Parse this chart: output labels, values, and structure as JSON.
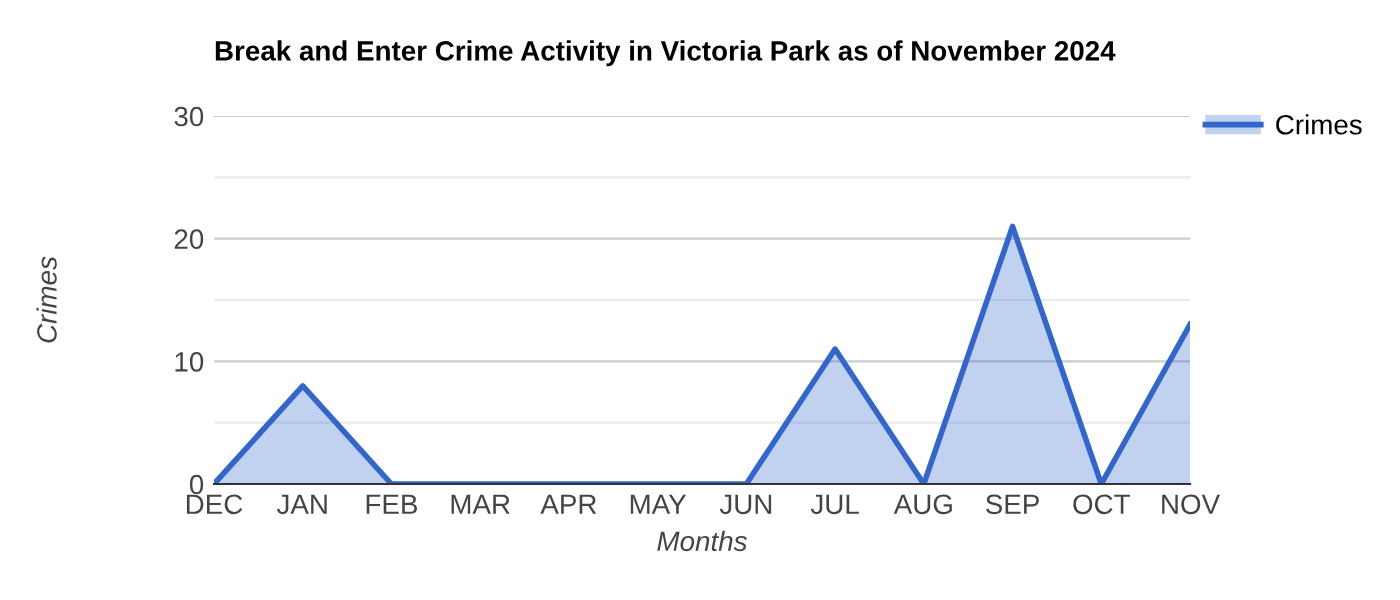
{
  "chart_data": {
    "type": "area",
    "title": "Break and Enter Crime Activity in Victoria Park as of November 2024",
    "xlabel": "Months",
    "ylabel": "Crimes",
    "categories": [
      "DEC",
      "JAN",
      "FEB",
      "MAR",
      "APR",
      "MAY",
      "JUN",
      "JUL",
      "AUG",
      "SEP",
      "OCT",
      "NOV"
    ],
    "series": [
      {
        "name": "Crimes",
        "color": "#3366cc",
        "values": [
          0,
          8,
          0,
          0,
          0,
          0,
          0,
          11,
          0,
          21,
          0,
          13
        ]
      }
    ],
    "ylim": [
      0,
      30
    ],
    "yticks": [
      0,
      {
        "value": 5,
        "label": null
      },
      10,
      {
        "value": 15,
        "label": null
      },
      20,
      {
        "value": 25,
        "label": null
      },
      30
    ],
    "grid": "y",
    "legend": "top right"
  }
}
